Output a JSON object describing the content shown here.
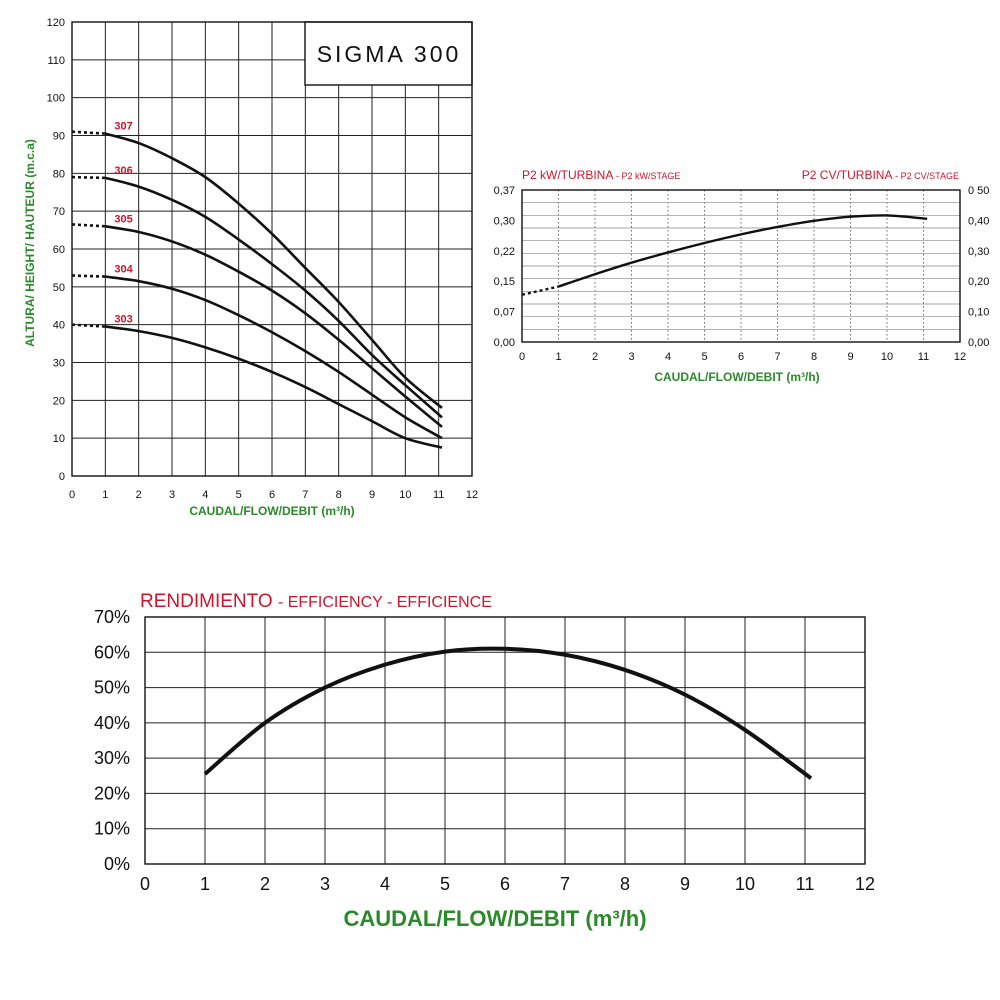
{
  "chart_data": [
    {
      "id": "head",
      "type": "line",
      "title": "SIGMA 300",
      "xlabel": "CAUDAL/FLOW/DEBIT (m³/h)",
      "ylabel": "ALTURA/ HEIGHT/ HAUTEUR (m.c.a)",
      "xlim": [
        0,
        12
      ],
      "ylim": [
        0,
        120
      ],
      "x_ticks": [
        "0",
        "1",
        "2",
        "3",
        "4",
        "5",
        "6",
        "7",
        "8",
        "9",
        "10",
        "11",
        "12"
      ],
      "y_ticks": [
        "0",
        "10",
        "20",
        "30",
        "40",
        "50",
        "60",
        "70",
        "80",
        "90",
        "100",
        "110",
        "120"
      ],
      "x_tick_values": [
        0,
        1,
        2,
        3,
        4,
        5,
        6,
        7,
        8,
        9,
        10,
        11,
        12
      ],
      "y_tick_values": [
        0,
        10,
        20,
        30,
        40,
        50,
        60,
        70,
        80,
        90,
        100,
        110,
        120
      ],
      "grid": true,
      "series": [
        {
          "name": "307",
          "dashed": [
            [
              0,
              91
            ],
            [
              1,
              90.5
            ]
          ],
          "x": [
            1,
            2,
            3,
            4,
            5,
            6,
            7,
            8,
            9,
            10,
            11.1
          ],
          "values": [
            90.5,
            88,
            84,
            79,
            72,
            64,
            55,
            46,
            36,
            26,
            18
          ]
        },
        {
          "name": "306",
          "dashed": [
            [
              0,
              79
            ],
            [
              1,
              78.8
            ]
          ],
          "x": [
            1,
            2,
            3,
            4,
            5,
            6,
            7,
            8,
            9,
            10,
            11.1
          ],
          "values": [
            78.8,
            76.5,
            73,
            68.5,
            62.5,
            56,
            49,
            41,
            32,
            24,
            15.5
          ]
        },
        {
          "name": "305",
          "dashed": [
            [
              0,
              66.5
            ],
            [
              1,
              66
            ]
          ],
          "x": [
            1,
            2,
            3,
            4,
            5,
            6,
            7,
            8,
            9,
            10,
            11.1
          ],
          "values": [
            66,
            64.5,
            62,
            58.5,
            54,
            49,
            43,
            36,
            28.5,
            21,
            13
          ]
        },
        {
          "name": "304",
          "dashed": [
            [
              0,
              53
            ],
            [
              1,
              52.7
            ]
          ],
          "x": [
            1,
            2,
            3,
            4,
            5,
            6,
            7,
            8,
            9,
            10,
            11.1
          ],
          "values": [
            52.7,
            51.5,
            49.5,
            46.5,
            42.5,
            38,
            33,
            27.5,
            21.5,
            15.5,
            10
          ]
        },
        {
          "name": "303",
          "dashed": [
            [
              0,
              40
            ],
            [
              1,
              39.5
            ]
          ],
          "x": [
            1,
            2,
            3,
            4,
            5,
            6,
            7,
            8,
            9,
            10,
            11.1
          ],
          "values": [
            39.5,
            38.3,
            36.5,
            34,
            31,
            27.5,
            23.5,
            19,
            14.5,
            10,
            7.5
          ]
        }
      ]
    },
    {
      "id": "power",
      "type": "line",
      "left_title": "P2 kW/TURBINA",
      "left_subtitle": "- P2 kW/STAGE",
      "right_title": "P2 CV/TURBINA",
      "right_subtitle": "- P2 CV/STAGE",
      "xlabel": "CAUDAL/FLOW/DEBIT (m³/h)",
      "xlim": [
        0,
        12
      ],
      "ylim": [
        0,
        0.37
      ],
      "y2lim": [
        0,
        0.5
      ],
      "x_ticks": [
        "0",
        "1",
        "2",
        "3",
        "4",
        "5",
        "6",
        "7",
        "8",
        "9",
        "10",
        "11",
        "12"
      ],
      "x_tick_values": [
        0,
        1,
        2,
        3,
        4,
        5,
        6,
        7,
        8,
        9,
        10,
        11,
        12
      ],
      "y_ticks": [
        "0,00",
        "0,07",
        "0,15",
        "0,22",
        "0,30",
        "0,37"
      ],
      "y_tick_values": [
        0,
        0.074,
        0.148,
        0.222,
        0.296,
        0.37
      ],
      "y2_ticks": [
        "0,00",
        "0,10",
        "0,20",
        "0,30",
        "0,40",
        "0 50"
      ],
      "y2_tick_values": [
        0,
        0.1,
        0.2,
        0.3,
        0.4,
        0.5
      ],
      "grid": true,
      "series": [
        {
          "name": "P2",
          "dashed": [
            [
              0,
              0.115
            ],
            [
              1,
              0.135
            ]
          ],
          "x": [
            1,
            2,
            3,
            4,
            5,
            6,
            7,
            8,
            9,
            10,
            11.1
          ],
          "values": [
            0.135,
            0.165,
            0.193,
            0.218,
            0.241,
            0.262,
            0.28,
            0.295,
            0.305,
            0.308,
            0.3
          ]
        }
      ]
    },
    {
      "id": "efficiency",
      "type": "line",
      "title_main": "RENDIMIENTO",
      "title_rest": "- EFFICIENCY - EFFICIENCE",
      "xlabel": "CAUDAL/FLOW/DEBIT (m³/h)",
      "xlim": [
        0,
        12
      ],
      "ylim": [
        0,
        70
      ],
      "x_ticks": [
        "0",
        "1",
        "2",
        "3",
        "4",
        "5",
        "6",
        "7",
        "8",
        "9",
        "10",
        "11",
        "12"
      ],
      "x_tick_values": [
        0,
        1,
        2,
        3,
        4,
        5,
        6,
        7,
        8,
        9,
        10,
        11,
        12
      ],
      "y_ticks": [
        "0%",
        "10%",
        "20%",
        "30%",
        "40%",
        "50%",
        "60%",
        "70%"
      ],
      "y_tick_values": [
        0,
        10,
        20,
        30,
        40,
        50,
        60,
        70
      ],
      "grid": true,
      "series": [
        {
          "name": "Efficiency",
          "x": [
            1,
            2,
            3,
            4,
            5,
            6,
            7,
            8,
            9,
            10,
            11.1
          ],
          "values": [
            25.5,
            40,
            50,
            56.5,
            60.2,
            61,
            59.3,
            55,
            48,
            38,
            24.3
          ]
        }
      ]
    }
  ]
}
